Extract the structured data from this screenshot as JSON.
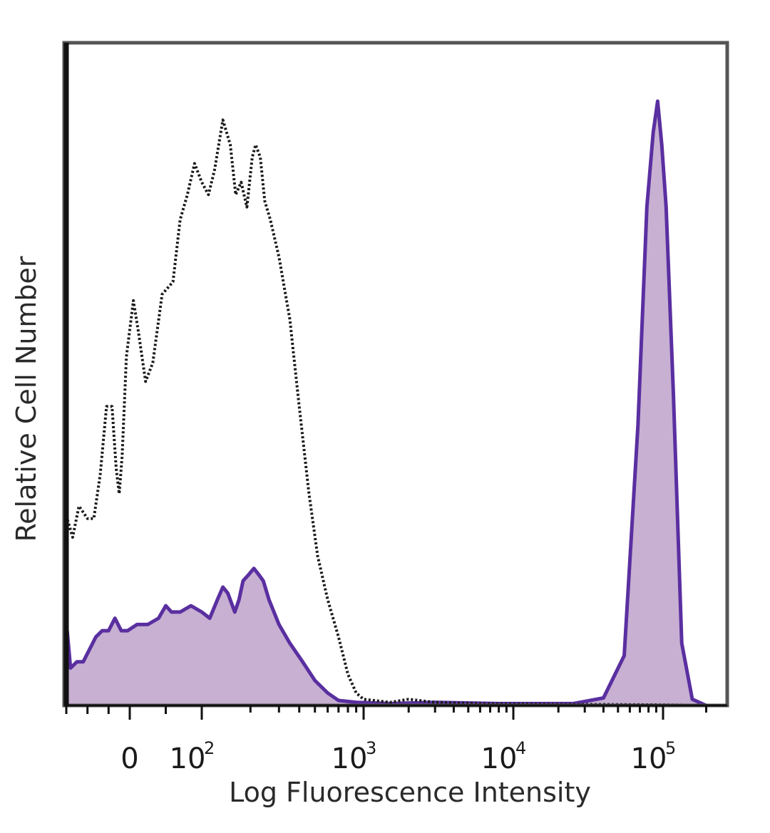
{
  "chart_data": {
    "type": "area",
    "title": "",
    "xlabel": "Log Fluorescence Intensity",
    "ylabel": "Relative Cell Number",
    "x_scale": "biexponential",
    "xlim": [
      -150,
      250000
    ],
    "ylim": [
      0,
      100
    ],
    "grid": false,
    "legend": "none",
    "x_ticks": [
      {
        "value": 0,
        "base": "0",
        "exp": ""
      },
      {
        "value": 100,
        "base": "10",
        "exp": "2"
      },
      {
        "value": 1000,
        "base": "10",
        "exp": "3"
      },
      {
        "value": 10000,
        "base": "10",
        "exp": "4"
      },
      {
        "value": 100000,
        "base": "10",
        "exp": "5"
      }
    ],
    "series": [
      {
        "style": "dotted-outline",
        "color": "#1a1a1a",
        "fill": "none",
        "points": [
          [
            -150,
            0
          ],
          [
            -148,
            30
          ],
          [
            -135,
            27
          ],
          [
            -120,
            32
          ],
          [
            -100,
            30
          ],
          [
            -85,
            30
          ],
          [
            -70,
            37
          ],
          [
            -55,
            48
          ],
          [
            -42,
            48
          ],
          [
            -32,
            38
          ],
          [
            -25,
            34
          ],
          [
            -18,
            40
          ],
          [
            -8,
            56
          ],
          [
            5,
            65
          ],
          [
            12,
            60
          ],
          [
            22,
            52
          ],
          [
            32,
            55
          ],
          [
            45,
            66
          ],
          [
            60,
            68
          ],
          [
            70,
            78
          ],
          [
            80,
            82
          ],
          [
            90,
            87
          ],
          [
            100,
            84
          ],
          [
            110,
            82
          ],
          [
            120,
            86
          ],
          [
            135,
            94
          ],
          [
            150,
            90
          ],
          [
            162,
            82
          ],
          [
            175,
            84
          ],
          [
            190,
            80
          ],
          [
            205,
            88
          ],
          [
            215,
            90
          ],
          [
            230,
            88
          ],
          [
            245,
            81
          ],
          [
            265,
            78
          ],
          [
            300,
            72
          ],
          [
            350,
            62
          ],
          [
            400,
            48
          ],
          [
            460,
            34
          ],
          [
            520,
            24
          ],
          [
            600,
            17
          ],
          [
            700,
            11
          ],
          [
            800,
            5
          ],
          [
            900,
            2
          ],
          [
            1000,
            1
          ],
          [
            1500,
            0.5
          ],
          [
            2000,
            1
          ],
          [
            3000,
            0.5
          ],
          [
            6000,
            0.3
          ],
          [
            20000,
            0.2
          ],
          [
            100000,
            0.1
          ],
          [
            250000,
            0
          ]
        ]
      },
      {
        "style": "filled",
        "color": "#5a2fa0",
        "fill": "#c7b0d2",
        "points": [
          [
            -150,
            0
          ],
          [
            -148,
            12
          ],
          [
            -140,
            6
          ],
          [
            -125,
            7
          ],
          [
            -110,
            7
          ],
          [
            -95,
            9
          ],
          [
            -80,
            11
          ],
          [
            -65,
            12
          ],
          [
            -50,
            12
          ],
          [
            -35,
            14
          ],
          [
            -20,
            12
          ],
          [
            -5,
            12
          ],
          [
            10,
            13
          ],
          [
            25,
            13
          ],
          [
            40,
            14
          ],
          [
            50,
            16
          ],
          [
            58,
            15
          ],
          [
            70,
            15
          ],
          [
            85,
            16
          ],
          [
            100,
            15
          ],
          [
            112,
            14
          ],
          [
            125,
            17
          ],
          [
            135,
            19
          ],
          [
            145,
            18
          ],
          [
            160,
            15
          ],
          [
            170,
            17
          ],
          [
            180,
            20
          ],
          [
            195,
            21
          ],
          [
            210,
            22
          ],
          [
            225,
            21
          ],
          [
            240,
            20
          ],
          [
            260,
            17
          ],
          [
            300,
            13
          ],
          [
            350,
            10
          ],
          [
            420,
            7
          ],
          [
            500,
            4
          ],
          [
            600,
            2
          ],
          [
            700,
            0.8
          ],
          [
            900,
            0.5
          ],
          [
            1500,
            0.3
          ],
          [
            3000,
            0.5
          ],
          [
            8000,
            0.3
          ],
          [
            14000,
            0.3
          ],
          [
            25000,
            0.3
          ],
          [
            40000,
            1.2
          ],
          [
            55000,
            8
          ],
          [
            68000,
            45
          ],
          [
            78000,
            80
          ],
          [
            86000,
            92
          ],
          [
            92000,
            97
          ],
          [
            98000,
            90
          ],
          [
            105000,
            80
          ],
          [
            118000,
            50
          ],
          [
            135000,
            10
          ],
          [
            160000,
            1
          ],
          [
            200000,
            0
          ],
          [
            250000,
            0
          ]
        ]
      }
    ]
  }
}
